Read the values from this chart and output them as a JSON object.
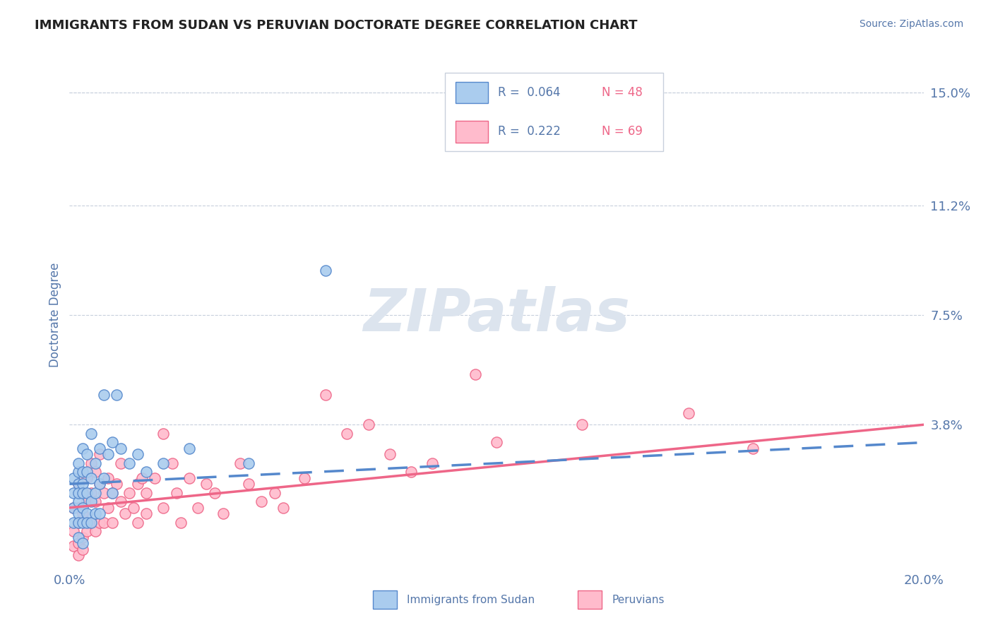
{
  "title": "IMMIGRANTS FROM SUDAN VS PERUVIAN DOCTORATE DEGREE CORRELATION CHART",
  "source_text": "Source: ZipAtlas.com",
  "ylabel": "Doctorate Degree",
  "xlim": [
    0.0,
    0.2
  ],
  "ylim": [
    -0.01,
    0.16
  ],
  "ytick_labels": [
    "15.0%",
    "11.2%",
    "7.5%",
    "3.8%"
  ],
  "ytick_positions": [
    0.15,
    0.112,
    0.075,
    0.038
  ],
  "grid_color": "#c8d0dc",
  "background_color": "#ffffff",
  "watermark": "ZIPatlas",
  "watermark_color": "#dce4ee",
  "legend_R1": "R =  0.064",
  "legend_N1": "N = 48",
  "legend_R2": "R =  0.222",
  "legend_N2": "N = 69",
  "blue_color": "#5588cc",
  "pink_color": "#ee6688",
  "blue_fill": "#aaccee",
  "pink_fill": "#ffbbcc",
  "title_color": "#222222",
  "axis_label_color": "#5577aa",
  "series1_x": [
    0.001,
    0.001,
    0.001,
    0.001,
    0.002,
    0.002,
    0.002,
    0.002,
    0.002,
    0.002,
    0.002,
    0.002,
    0.003,
    0.003,
    0.003,
    0.003,
    0.003,
    0.003,
    0.003,
    0.004,
    0.004,
    0.004,
    0.004,
    0.004,
    0.005,
    0.005,
    0.005,
    0.005,
    0.006,
    0.006,
    0.006,
    0.007,
    0.007,
    0.007,
    0.008,
    0.008,
    0.009,
    0.01,
    0.01,
    0.011,
    0.012,
    0.014,
    0.016,
    0.018,
    0.022,
    0.028,
    0.042,
    0.06
  ],
  "series1_y": [
    0.01,
    0.015,
    0.005,
    0.02,
    0.022,
    0.018,
    0.012,
    0.008,
    0.025,
    0.015,
    0.005,
    0.0,
    0.03,
    0.018,
    0.01,
    0.005,
    0.022,
    0.015,
    -0.002,
    0.028,
    0.015,
    0.008,
    0.022,
    0.005,
    0.035,
    0.02,
    0.012,
    0.005,
    0.025,
    0.015,
    0.008,
    0.03,
    0.018,
    0.008,
    0.048,
    0.02,
    0.028,
    0.032,
    0.015,
    0.048,
    0.03,
    0.025,
    0.028,
    0.022,
    0.025,
    0.03,
    0.025,
    0.09
  ],
  "series2_x": [
    0.001,
    0.001,
    0.001,
    0.002,
    0.002,
    0.002,
    0.002,
    0.002,
    0.003,
    0.003,
    0.003,
    0.003,
    0.004,
    0.004,
    0.004,
    0.005,
    0.005,
    0.005,
    0.006,
    0.006,
    0.006,
    0.007,
    0.007,
    0.007,
    0.008,
    0.008,
    0.009,
    0.009,
    0.01,
    0.01,
    0.011,
    0.012,
    0.012,
    0.013,
    0.014,
    0.015,
    0.016,
    0.016,
    0.017,
    0.018,
    0.018,
    0.02,
    0.022,
    0.022,
    0.024,
    0.025,
    0.026,
    0.028,
    0.03,
    0.032,
    0.034,
    0.036,
    0.04,
    0.042,
    0.045,
    0.048,
    0.05,
    0.055,
    0.06,
    0.065,
    0.07,
    0.075,
    0.08,
    0.085,
    0.095,
    0.1,
    0.12,
    0.145,
    0.16
  ],
  "series2_y": [
    0.01,
    0.002,
    -0.003,
    0.018,
    0.01,
    0.005,
    -0.002,
    -0.006,
    0.015,
    0.008,
    0.0,
    -0.004,
    0.02,
    0.012,
    0.002,
    0.025,
    0.015,
    0.005,
    0.022,
    0.012,
    0.002,
    0.028,
    0.018,
    0.005,
    0.015,
    0.005,
    0.02,
    0.01,
    0.015,
    0.005,
    0.018,
    0.025,
    0.012,
    0.008,
    0.015,
    0.01,
    0.018,
    0.005,
    0.02,
    0.015,
    0.008,
    0.02,
    0.035,
    0.01,
    0.025,
    0.015,
    0.005,
    0.02,
    0.01,
    0.018,
    0.015,
    0.008,
    0.025,
    0.018,
    0.012,
    0.015,
    0.01,
    0.02,
    0.048,
    0.035,
    0.038,
    0.028,
    0.022,
    0.025,
    0.055,
    0.032,
    0.038,
    0.042,
    0.03
  ],
  "trend1_x0": 0.0,
  "trend1_x1": 0.2,
  "trend1_y0": 0.018,
  "trend1_y1": 0.032,
  "trend2_x0": 0.0,
  "trend2_x1": 0.2,
  "trend2_y0": 0.01,
  "trend2_y1": 0.038
}
